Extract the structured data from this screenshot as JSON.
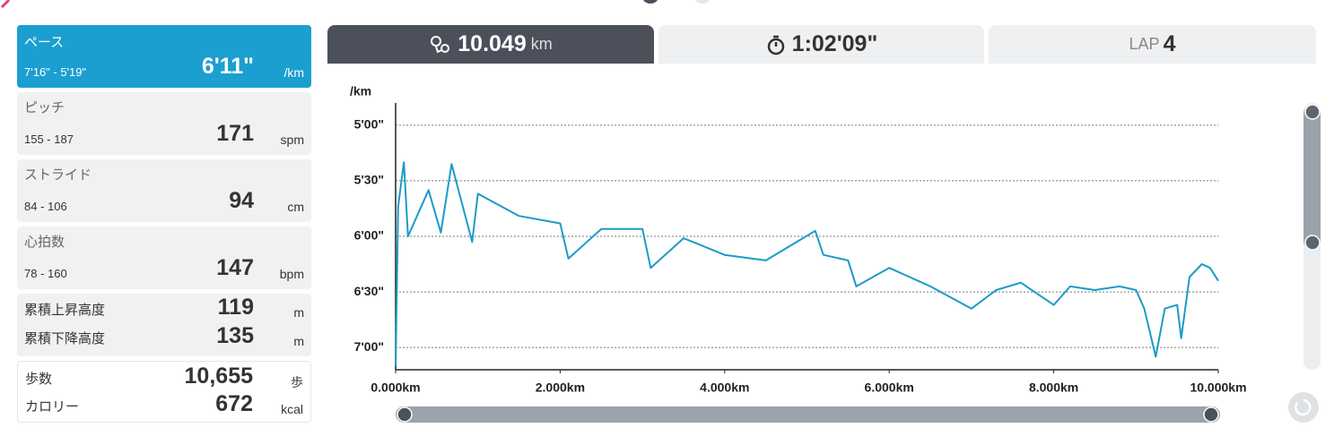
{
  "metrics": [
    {
      "label": "ペース",
      "range": "7'16\" - 5'19\"",
      "value": "6'11\"",
      "unit": "/km"
    },
    {
      "label": "ピッチ",
      "range": "155 - 187",
      "value": "171",
      "unit": "spm"
    },
    {
      "label": "ストライド",
      "range": "84 - 106",
      "value": "94",
      "unit": "cm"
    },
    {
      "label": "心拍数",
      "range": "78 - 160",
      "value": "147",
      "unit": "bpm"
    }
  ],
  "elevation": [
    {
      "label": "累積上昇高度",
      "value": "119",
      "unit": "m"
    },
    {
      "label": "累積下降高度",
      "value": "135",
      "unit": "m"
    }
  ],
  "totals": [
    {
      "label": "歩数",
      "value": "10,655",
      "unit": "歩"
    },
    {
      "label": "カロリー",
      "value": "672",
      "unit": "kcal"
    }
  ],
  "tabs": {
    "distance": {
      "value": "10.049",
      "unit": "km"
    },
    "time": "1:02'09\"",
    "lap": {
      "label": "LAP",
      "value": "4"
    }
  },
  "chart_data": {
    "type": "line",
    "y_label": "/km",
    "color": "#1b9bc7",
    "grid": true,
    "x": [
      0,
      0.03,
      0.1,
      0.15,
      0.4,
      0.55,
      0.68,
      0.93,
      1.0,
      1.5,
      2.0,
      2.1,
      2.5,
      3.0,
      3.1,
      3.5,
      4.0,
      4.5,
      5.1,
      5.2,
      5.5,
      5.6,
      6.0,
      6.5,
      7.0,
      7.3,
      7.6,
      8.0,
      8.2,
      8.5,
      8.8,
      9.0,
      9.1,
      9.24,
      9.35,
      9.5,
      9.55,
      9.65,
      9.8,
      9.9,
      10.0
    ],
    "values": [
      430,
      344,
      320,
      360,
      335,
      358,
      321,
      363,
      337,
      349,
      353,
      372,
      356,
      356,
      377,
      361,
      370,
      373,
      357,
      370,
      373,
      387,
      377,
      387,
      399,
      389,
      385,
      397,
      387,
      389,
      387,
      389,
      399,
      425,
      399,
      397,
      415,
      382,
      375,
      377,
      384
    ],
    "xlim": [
      0,
      10
    ],
    "xticks": [
      {
        "value": 0,
        "label": "0.000km"
      },
      {
        "value": 2,
        "label": "2.000km"
      },
      {
        "value": 4,
        "label": "4.000km"
      },
      {
        "value": 6,
        "label": "6.000km"
      },
      {
        "value": 8,
        "label": "8.000km"
      },
      {
        "value": 10,
        "label": "10.000km"
      }
    ],
    "ylim": [
      432,
      288
    ],
    "yticks": [
      {
        "value": 300,
        "label": "5'00\""
      },
      {
        "value": 330,
        "label": "5'30\""
      },
      {
        "value": 360,
        "label": "6'00\""
      },
      {
        "value": 390,
        "label": "6'30\""
      },
      {
        "value": 420,
        "label": "7'00\""
      }
    ]
  }
}
